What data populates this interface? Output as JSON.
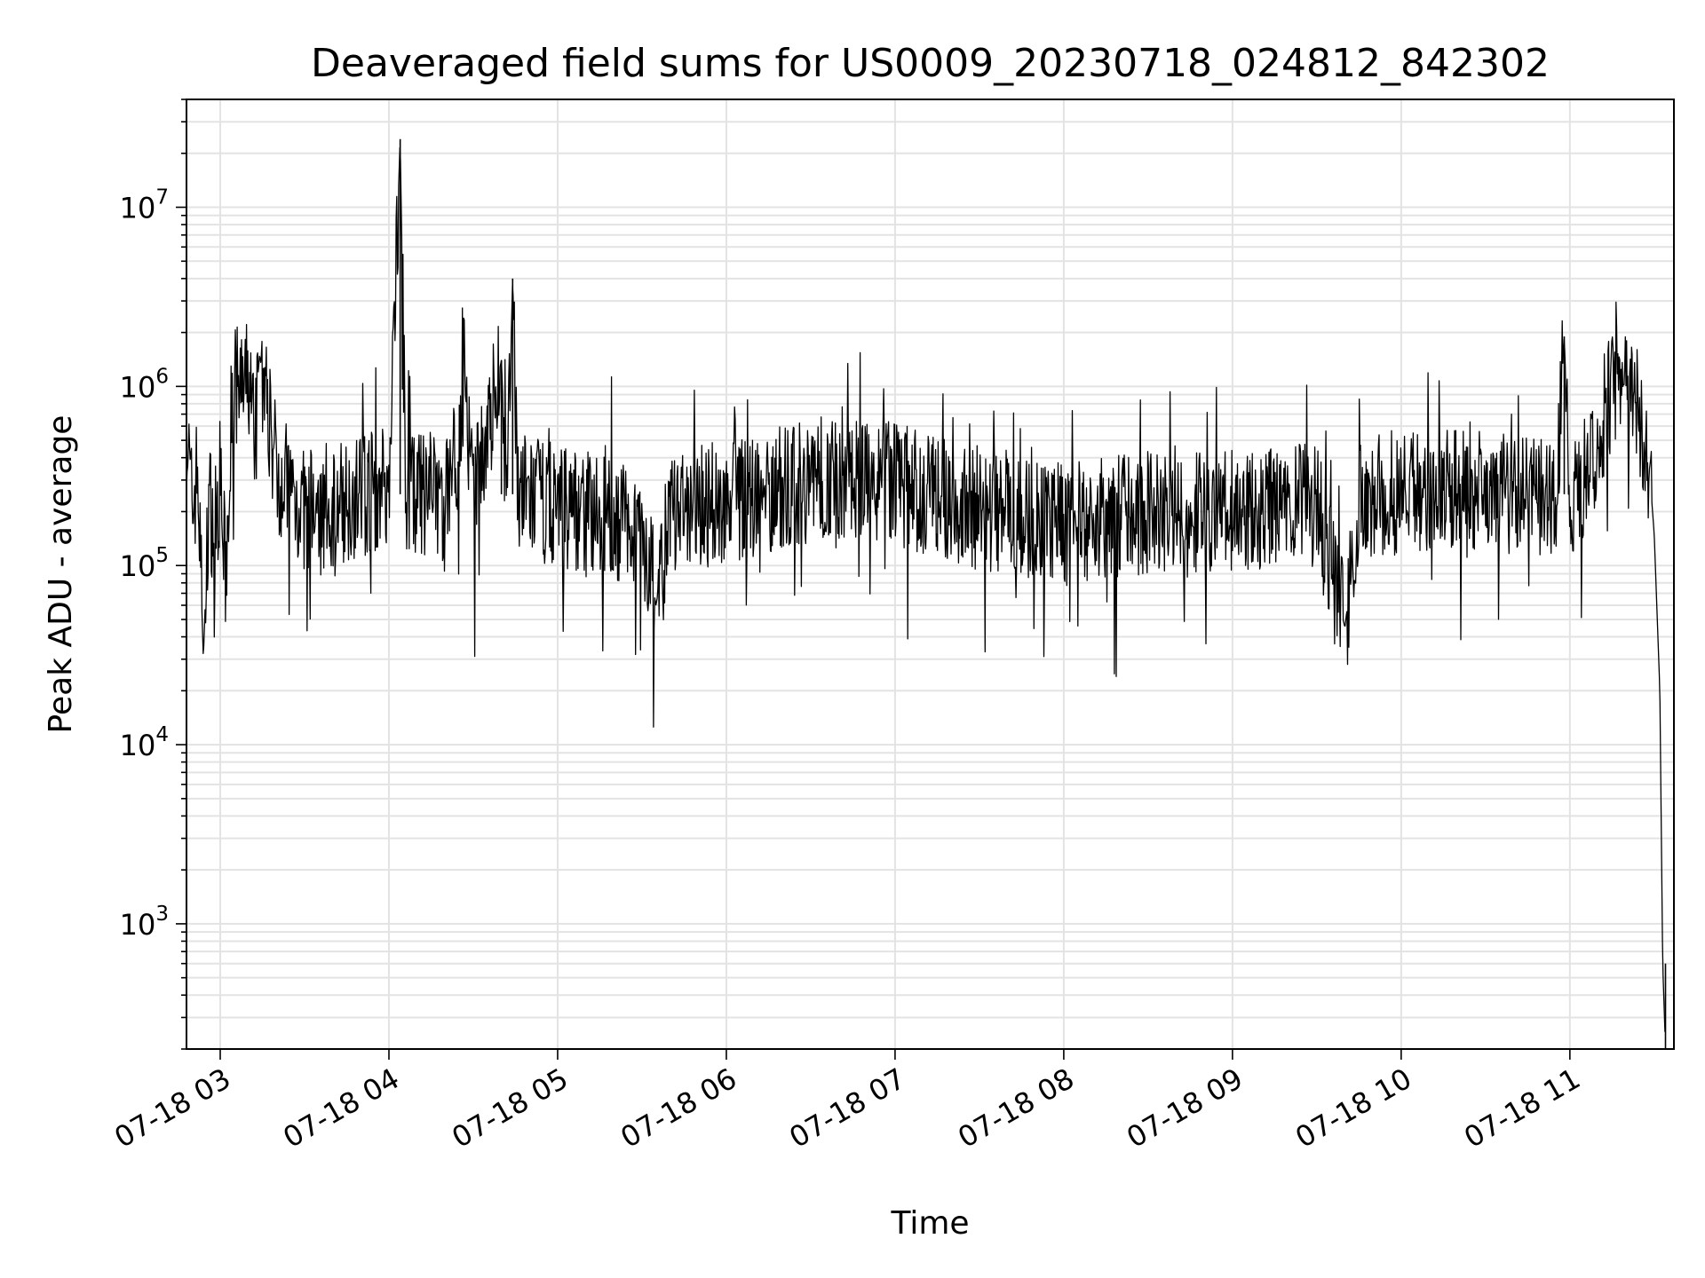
{
  "chart_data": {
    "type": "line",
    "title": "Deaveraged field sums for US0009_20230718_024812_842302",
    "xlabel": "Time",
    "ylabel": "Peak ADU - average",
    "yscale": "log",
    "xlim": [
      "2023-07-18 02:48",
      "2023-07-18 11:37"
    ],
    "ylim": [
      200,
      40000000
    ],
    "x_ticks": [
      "07-18 03",
      "07-18 04",
      "07-18 05",
      "07-18 06",
      "07-18 07",
      "07-18 08",
      "07-18 09",
      "07-18 10",
      "07-18 11"
    ],
    "y_ticks": [
      "10^3",
      "10^4",
      "10^5",
      "10^6",
      "10^7"
    ],
    "grid": true,
    "line_color": "#000000",
    "series": [
      {
        "x": [
          "2023-07-18 02:48",
          "2023-07-18 02:50",
          "2023-07-18 02:52",
          "2023-07-18 02:54",
          "2023-07-18 02:56",
          "2023-07-18 02:58",
          "2023-07-18 03:00",
          "2023-07-18 03:02",
          "2023-07-18 03:04",
          "2023-07-18 03:06",
          "2023-07-18 03:08",
          "2023-07-18 03:10",
          "2023-07-18 03:12",
          "2023-07-18 03:14",
          "2023-07-18 03:20",
          "2023-07-18 03:30",
          "2023-07-18 03:40",
          "2023-07-18 03:50",
          "2023-07-18 04:00",
          "2023-07-18 04:04",
          "2023-07-18 04:06",
          "2023-07-18 04:10",
          "2023-07-18 04:20",
          "2023-07-18 04:27",
          "2023-07-18 04:30",
          "2023-07-18 04:40",
          "2023-07-18 04:42",
          "2023-07-18 04:44",
          "2023-07-18 04:46",
          "2023-07-18 04:50",
          "2023-07-18 05:00",
          "2023-07-18 05:10",
          "2023-07-18 05:20",
          "2023-07-18 05:30",
          "2023-07-18 05:35",
          "2023-07-18 05:40",
          "2023-07-18 05:50",
          "2023-07-18 06:00",
          "2023-07-18 06:15",
          "2023-07-18 06:30",
          "2023-07-18 06:45",
          "2023-07-18 06:55",
          "2023-07-18 07:00",
          "2023-07-18 07:15",
          "2023-07-18 07:30",
          "2023-07-18 07:45",
          "2023-07-18 08:00",
          "2023-07-18 08:15",
          "2023-07-18 08:30",
          "2023-07-18 08:45",
          "2023-07-18 09:00",
          "2023-07-18 09:15",
          "2023-07-18 09:30",
          "2023-07-18 09:40",
          "2023-07-18 09:45",
          "2023-07-18 10:00",
          "2023-07-18 10:15",
          "2023-07-18 10:30",
          "2023-07-18 10:45",
          "2023-07-18 10:55",
          "2023-07-18 10:58",
          "2023-07-18 11:00",
          "2023-07-18 11:05",
          "2023-07-18 11:10",
          "2023-07-18 11:12",
          "2023-07-18 11:16",
          "2023-07-18 11:20",
          "2023-07-18 11:24",
          "2023-07-18 11:28",
          "2023-07-18 11:30",
          "2023-07-18 11:32",
          "2023-07-18 11:33",
          "2023-07-18 11:34"
        ],
        "y": [
          600000,
          200000,
          350000,
          30000,
          250000,
          150000,
          300000,
          80000,
          800000,
          1000000,
          900000,
          1100000,
          600000,
          1500000,
          350000,
          200000,
          220000,
          250000,
          280000,
          24000000,
          260000,
          250000,
          230000,
          800000,
          220000,
          1400000,
          210000,
          4000000,
          250000,
          240000,
          220000,
          200000,
          180000,
          170000,
          60000,
          190000,
          210000,
          230000,
          260000,
          300000,
          320000,
          310000,
          280000,
          240000,
          210000,
          190000,
          170000,
          180000,
          200000,
          190000,
          200000,
          210000,
          220000,
          45000,
          230000,
          260000,
          280000,
          270000,
          250000,
          240000,
          1900000,
          230000,
          300000,
          500000,
          700000,
          1100000,
          1000000,
          800000,
          400000,
          150000,
          20000,
          600,
          200
        ]
      }
    ]
  }
}
